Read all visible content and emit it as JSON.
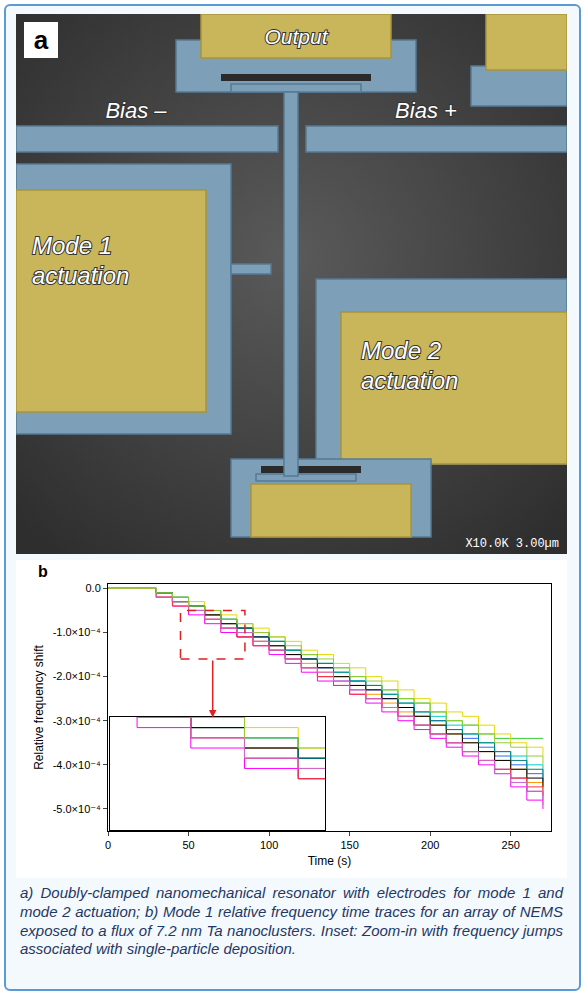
{
  "panel_a": {
    "letter": "a",
    "labels": {
      "output": "Output",
      "bias_minus": "Bias –",
      "bias_plus": "Bias +",
      "mode1": "Mode 1 actuation",
      "mode2": "Mode 2 actuation"
    },
    "scale_bar": "X10.0K 3.00µm"
  },
  "chart_data": {
    "letter": "b",
    "type": "step",
    "x_label": "Time (s)",
    "y_label": "Relative frequency shift",
    "x": [
      0,
      10,
      20,
      30,
      40,
      50,
      60,
      70,
      80,
      90,
      100,
      110,
      120,
      130,
      140,
      150,
      160,
      170,
      180,
      190,
      200,
      210,
      220,
      230,
      240,
      250,
      260,
      270
    ],
    "series": [
      {
        "color": "#33cc33",
        "values": [
          0,
          0,
          0,
          -1e-05,
          -3e-05,
          -4e-05,
          -6e-05,
          -7e-05,
          -9e-05,
          -0.0001,
          -0.00012,
          -0.00014,
          -0.00015,
          -0.00017,
          -0.00018,
          -0.0002,
          -0.00022,
          -0.00023,
          -0.00025,
          -0.00026,
          -0.00028,
          -0.0003,
          -0.00031,
          -0.00033,
          -0.00034,
          -0.00034,
          -0.00034,
          -0.00034
        ]
      },
      {
        "color": "#ff00ff",
        "values": [
          0,
          0,
          0,
          -2e-05,
          -4e-05,
          -6e-05,
          -8e-05,
          -0.0001,
          -0.00011,
          -0.00013,
          -0.00015,
          -0.00017,
          -0.00019,
          -0.00021,
          -0.00022,
          -0.00024,
          -0.00026,
          -0.00028,
          -0.0003,
          -0.00032,
          -0.00034,
          -0.00036,
          -0.00038,
          -0.0004,
          -0.00042,
          -0.00045,
          -0.00048,
          -0.0005
        ]
      },
      {
        "color": "#9933cc",
        "values": [
          0,
          0,
          0,
          -2e-05,
          -3e-05,
          -5e-05,
          -7e-05,
          -9e-05,
          -0.00011,
          -0.00012,
          -0.00014,
          -0.00016,
          -0.00018,
          -0.0002,
          -0.00021,
          -0.00023,
          -0.00025,
          -0.00027,
          -0.00029,
          -0.00031,
          -0.00033,
          -0.00035,
          -0.00037,
          -0.00039,
          -0.00041,
          -0.00043,
          -0.00046,
          -0.00048
        ]
      },
      {
        "color": "#3366ff",
        "values": [
          0,
          0,
          0,
          -1e-05,
          -3e-05,
          -5e-05,
          -6e-05,
          -8e-05,
          -0.0001,
          -0.00011,
          -0.00013,
          -0.00015,
          -0.00016,
          -0.00018,
          -0.0002,
          -0.00021,
          -0.00023,
          -0.00025,
          -0.00027,
          -0.00029,
          -0.0003,
          -0.00032,
          -0.00034,
          -0.00036,
          -0.00038,
          -0.0004,
          -0.00042,
          -0.00044
        ]
      },
      {
        "color": "#00cccc",
        "values": [
          0,
          0,
          0,
          -1e-05,
          -2e-05,
          -4e-05,
          -6e-05,
          -7e-05,
          -9e-05,
          -0.00011,
          -0.00012,
          -0.00014,
          -0.00016,
          -0.00017,
          -0.00019,
          -0.00021,
          -0.00022,
          -0.00024,
          -0.00026,
          -0.00028,
          -0.00029,
          -0.00031,
          -0.00033,
          -0.00035,
          -0.00037,
          -0.00038,
          -0.0004,
          -0.00042
        ]
      },
      {
        "color": "#ff9900",
        "values": [
          0,
          0,
          0,
          -2e-05,
          -3e-05,
          -5e-05,
          -6e-05,
          -8e-05,
          -0.0001,
          -0.00012,
          -0.00013,
          -0.00015,
          -0.00017,
          -0.00019,
          -0.0002,
          -0.00022,
          -0.00024,
          -0.00026,
          -0.00028,
          -0.00029,
          -0.00031,
          -0.00033,
          -0.00035,
          -0.00037,
          -0.00039,
          -0.00041,
          -0.00044,
          -0.00046
        ]
      },
      {
        "color": "#e6d800",
        "values": [
          0,
          0,
          0,
          -1e-05,
          -2e-05,
          -3e-05,
          -5e-05,
          -6e-05,
          -8e-05,
          -9e-05,
          -0.00011,
          -0.00012,
          -0.00014,
          -0.00015,
          -0.00017,
          -0.00018,
          -0.0002,
          -0.00021,
          -0.00023,
          -0.00025,
          -0.00026,
          -0.00028,
          -0.00029,
          -0.00031,
          -0.00033,
          -0.00035,
          -0.00036,
          -0.00038
        ]
      },
      {
        "color": "#000000",
        "values": [
          0,
          0,
          0,
          -1e-05,
          -3e-05,
          -4e-05,
          -6e-05,
          -8e-05,
          -9e-05,
          -0.00011,
          -0.00013,
          -0.00015,
          -0.00016,
          -0.00018,
          -0.0002,
          -0.00022,
          -0.00023,
          -0.00025,
          -0.00027,
          -0.00029,
          -0.00031,
          -0.00033,
          -0.00035,
          -0.00037,
          -0.00039,
          -0.00041,
          -0.00043,
          -0.00045
        ]
      },
      {
        "color": "#ff3333",
        "values": [
          0,
          0,
          0,
          -2e-05,
          -4e-05,
          -5e-05,
          -7e-05,
          -9e-05,
          -0.00011,
          -0.00013,
          -0.00014,
          -0.00016,
          -0.00018,
          -0.0002,
          -0.00022,
          -0.00024,
          -0.00025,
          -0.00027,
          -0.00029,
          -0.00031,
          -0.00033,
          -0.00035,
          -0.00037,
          -0.00039,
          -0.00041,
          -0.00043,
          -0.00045,
          -0.00047
        ]
      },
      {
        "color": "#008080",
        "values": [
          0,
          0,
          0,
          -1e-05,
          -2e-05,
          -4e-05,
          -5e-05,
          -7e-05,
          -9e-05,
          -0.0001,
          -0.00012,
          -0.00014,
          -0.00015,
          -0.00017,
          -0.00019,
          -0.00021,
          -0.00022,
          -0.00024,
          -0.00026,
          -0.00028,
          -0.0003,
          -0.00032,
          -0.00033,
          -0.00035,
          -0.00037,
          -0.00039,
          -0.00041,
          -0.00043
        ]
      },
      {
        "color": "#cc66cc",
        "values": [
          0,
          0,
          0,
          -2e-05,
          -3e-05,
          -5e-05,
          -7e-05,
          -9e-05,
          -0.0001,
          -0.00012,
          -0.00014,
          -0.00016,
          -0.00018,
          -0.00019,
          -0.00021,
          -0.00023,
          -0.00025,
          -0.00027,
          -0.00029,
          -0.00031,
          -0.00033,
          -0.00035,
          -0.00037,
          -0.00039,
          -0.00042,
          -0.00044,
          -0.00046,
          -0.00049
        ]
      },
      {
        "color": "#99cc33",
        "values": [
          0,
          0,
          0,
          -1e-05,
          -2e-05,
          -4e-05,
          -5e-05,
          -7e-05,
          -8e-05,
          -0.0001,
          -0.00011,
          -0.00013,
          -0.00015,
          -0.00016,
          -0.00018,
          -0.0002,
          -0.00021,
          -0.00023,
          -0.00025,
          -0.00026,
          -0.00028,
          -0.0003,
          -0.00031,
          -0.00033,
          -0.00035,
          -0.00036,
          -0.00038,
          -0.0004
        ]
      }
    ],
    "xlim": [
      0,
      275
    ],
    "xticks": [
      0,
      50,
      100,
      150,
      200,
      250
    ],
    "ylim": [
      -0.00055,
      1e-05
    ],
    "yticks": [
      {
        "value": 0,
        "label": "0.0"
      },
      {
        "value": -0.0001,
        "label": "-1.0×10⁻⁴"
      },
      {
        "value": -0.0002,
        "label": "-2.0×10⁻⁴"
      },
      {
        "value": -0.0003,
        "label": "-3.0×10⁻⁴"
      },
      {
        "value": -0.0004,
        "label": "-4.0×10⁻⁴"
      },
      {
        "value": -0.0005,
        "label": "-5.0×10⁻⁴"
      }
    ],
    "grid": false,
    "zoom_box": {
      "xlim": [
        45,
        85
      ],
      "ylim": [
        -0.00016,
        -5e-05
      ]
    }
  },
  "caption": "a) Doubly-clamped nanomechanical resonator with electrodes for mode 1 and mode 2 actuation; b) Mode 1 relative frequency time traces for an array of NEMS exposed to a flux of 7.2 nm Ta nanoclusters. Inset: Zoom-in with frequency jumps associated with single-particle deposition."
}
